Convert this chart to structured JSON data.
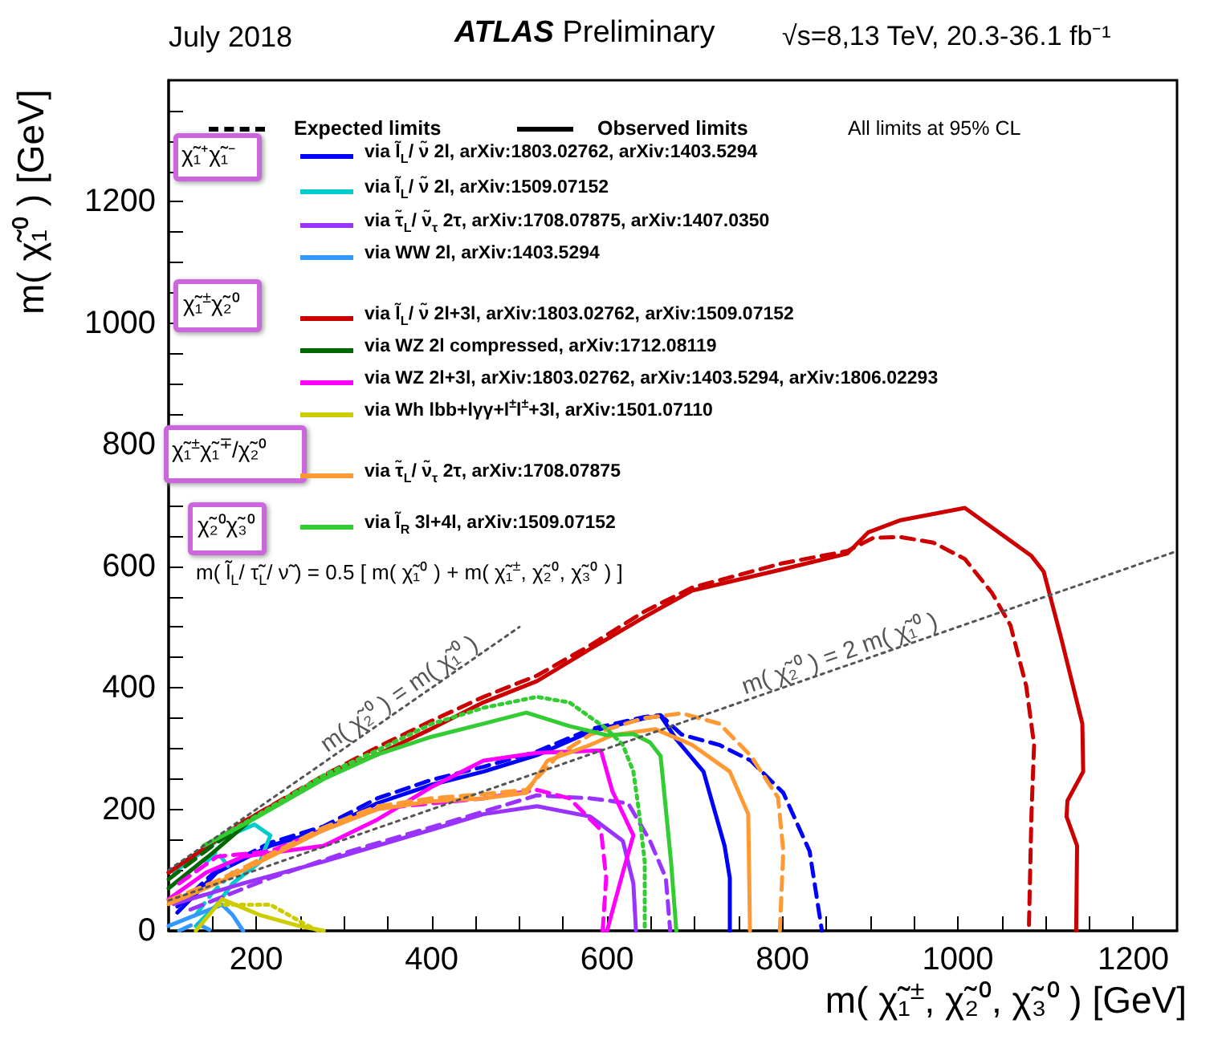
{
  "chart_data": {
    "type": "line",
    "title": "ATLAS Preliminary",
    "xlabel": "m( χ̃₁$^{±}$, χ̃₂⁰, χ̃₃⁰ ) [GeV]",
    "ylabel": "m( χ̃₁⁰ ) [GeV]",
    "annotations": [
      "July 2018",
      "√s=8,13 TeV, 20.3-36.1 fb⁻¹",
      "Expected limits",
      "Observed limits",
      "All limits at 95% CL",
      "χ̃₁⁺χ̃₁⁻",
      "χ̃₁$^{±}$χ̃₂⁰",
      "χ̃₁$^{±}$χ̃₁$^{∓}$/χ̃₂⁰",
      "χ̃₂⁰χ̃₃⁰",
      "m( l̃$_{L}$/ τ̃$_{L}$/ ν̃ ) = 0.5 [ m( χ̃₁⁰ ) + m( χ̃₁$^{±}$, χ̃₂⁰, χ̃₃⁰ ) ]"
    ],
    "xlim": [
      100,
      1250
    ],
    "ylim": [
      0,
      1400
    ],
    "xticks": [
      {
        "value": 150,
        "label": null
      },
      200,
      {
        "value": 250,
        "label": null
      },
      {
        "value": 300,
        "label": null
      },
      {
        "value": 350,
        "label": null
      },
      400,
      {
        "value": 450,
        "label": null
      },
      {
        "value": 500,
        "label": null
      },
      {
        "value": 550,
        "label": null
      },
      600,
      {
        "value": 650,
        "label": null
      },
      {
        "value": 700,
        "label": null
      },
      {
        "value": 750,
        "label": null
      },
      800,
      {
        "value": 850,
        "label": null
      },
      {
        "value": 900,
        "label": null
      },
      {
        "value": 950,
        "label": null
      },
      1000,
      {
        "value": 1050,
        "label": null
      },
      {
        "value": 1100,
        "label": null
      },
      {
        "value": 1150,
        "label": null
      },
      1200
    ],
    "yticks": [
      0,
      {
        "value": 50,
        "label": null
      },
      {
        "value": 100,
        "label": null
      },
      {
        "value": 150,
        "label": null
      },
      200,
      {
        "value": 250,
        "label": null
      },
      {
        "value": 300,
        "label": null
      },
      {
        "value": 350,
        "label": null
      },
      400,
      {
        "value": 450,
        "label": null
      },
      {
        "value": 500,
        "label": null
      },
      {
        "value": 550,
        "label": null
      },
      600,
      {
        "value": 650,
        "label": null
      },
      {
        "value": 700,
        "label": null
      },
      {
        "value": 750,
        "label": null
      },
      800,
      {
        "value": 850,
        "label": null
      },
      {
        "value": 900,
        "label": null
      },
      {
        "value": 950,
        "label": null
      },
      1000,
      {
        "value": 1050,
        "label": null
      },
      {
        "value": 1100,
        "label": null
      },
      {
        "value": 1150,
        "label": null
      },
      1200,
      {
        "value": 1250,
        "label": null
      },
      {
        "value": 1300,
        "label": null
      },
      {
        "value": 1350,
        "label": null
      }
    ],
    "legend": "top left",
    "marker": "none",
    "series": [
      {
        "name": "via l̃$_{L}$/ ν̃ 2l, arXiv:1803.02762, arXiv:1403.5294",
        "color": "#0000ff",
        "line_style": "solid",
        "x": [
          110,
          155,
          216,
          277,
          338,
          399,
          459,
          520,
          581,
          643,
          661,
          679,
          710,
          722,
          734,
          740,
          740
        ],
        "values": [
          30,
          96,
          140,
          166,
          210,
          240,
          262,
          289,
          328,
          350,
          354,
          315,
          262,
          201,
          140,
          87,
          0
        ]
      },
      {
        "color": "#0000ff",
        "line_style": "dashed",
        "x": [
          110,
          155,
          216,
          277,
          338,
          399,
          459,
          520,
          581,
          643,
          661,
          685,
          728,
          764,
          801,
          831,
          845
        ],
        "values": [
          40,
          100,
          145,
          172,
          218,
          248,
          270,
          295,
          332,
          352,
          355,
          323,
          306,
          280,
          227,
          131,
          0
        ]
      },
      {
        "name": "via l̃$_{L}$/ ν̃ 2l, arXiv:1509.07152",
        "color": "#00cccc",
        "line_style": "solid",
        "x": [
          106,
          155,
          198,
          216,
          204,
          173,
          155,
          131
        ],
        "values": [
          96,
          148,
          175,
          157,
          113,
          78,
          43,
          8
        ]
      },
      {
        "color": "#00cccc",
        "line_style": "dashed",
        "x": [
          143,
          155,
          173,
          149,
          131
        ],
        "values": [
          113,
          131,
          96,
          61,
          26
        ]
      },
      {
        "name": "via τ̃$_{L}$/ ν̃$_{τ}$ 2τ, arXiv:1708.07875, arXiv:1407.0350",
        "color": "#9933ff",
        "line_style": "solid",
        "x": [
          106,
          185,
          277,
          399,
          459,
          520,
          581,
          618,
          630,
          633
        ],
        "values": [
          44,
          78,
          114,
          166,
          192,
          205,
          188,
          148,
          78,
          0
        ]
      },
      {
        "color": "#9933ff",
        "line_style": "dashed",
        "x": [
          125,
          216,
          307,
          429,
          520,
          581,
          624,
          649,
          667,
          672
        ],
        "values": [
          35,
          87,
          131,
          183,
          223,
          218,
          210,
          148,
          87,
          0
        ]
      },
      {
        "name": "via WW 2l, arXiv:1403.5294",
        "color": "#3399ff",
        "line_style": "solid",
        "x": [
          100,
          131,
          161,
          173,
          185
        ],
        "values": [
          8,
          26,
          43,
          26,
          0
        ]
      },
      {
        "color": "#3399ff",
        "line_style": "dashed",
        "x": [
          112,
          131,
          149
        ],
        "values": [
          0,
          13,
          0
        ]
      },
      {
        "name": "via l̃$_{L}$/ ν̃ 2l+3l, arXiv:1803.02762, arXiv:1509.07152",
        "color": "#cc0000",
        "line_style": "solid",
        "x": [
          100,
          185,
          277,
          338,
          399,
          459,
          520,
          581,
          642,
          697,
          800,
          874,
          898,
          935,
          1008,
          1084,
          1098,
          1118,
          1142,
          1143,
          1125,
          1124,
          1136,
          1135
        ],
        "values": [
          96,
          179,
          254,
          290,
          332,
          376,
          411,
          464,
          516,
          560,
          595,
          621,
          656,
          676,
          696,
          617,
          591,
          481,
          341,
          262,
          214,
          188,
          140,
          0
        ]
      },
      {
        "color": "#cc0000",
        "line_style": "dashed",
        "x": [
          100,
          185,
          277,
          338,
          399,
          459,
          520,
          581,
          642,
          697,
          800,
          874,
          904,
          935,
          972,
          1008,
          1039,
          1060,
          1078,
          1087,
          1084,
          1081
        ],
        "values": [
          96,
          179,
          256,
          302,
          345,
          385,
          420,
          470,
          525,
          565,
          605,
          625,
          647,
          648,
          639,
          612,
          556,
          503,
          403,
          306,
          193,
          0
        ]
      },
      {
        "name": "via WZ 2l compressed, arXiv:1712.08119",
        "color": "#006600",
        "line_style": "solid",
        "x": [
          100,
          150,
          200
        ],
        "values": [
          70,
          128,
          190
        ]
      },
      {
        "color": "#006600",
        "line_style": "dashed",
        "x": [
          100,
          150,
          195
        ],
        "values": [
          85,
          140,
          185
        ]
      },
      {
        "name": "via WZ 2l+3l, arXiv:1803.02762, arXiv:1403.5294, arXiv:1806.02293",
        "color": "#ff00ff",
        "line_style": "solid",
        "x": [
          100,
          143,
          185,
          277,
          338,
          399,
          459,
          520,
          593,
          606,
          630,
          618,
          600
        ],
        "values": [
          52,
          96,
          122,
          140,
          183,
          236,
          280,
          293,
          297,
          230,
          157,
          96,
          0
        ]
      },
      {
        "color": "#ff00ff",
        "line_style": "dashed",
        "x": [
          112,
          155,
          216,
          338,
          459,
          520,
          557,
          593,
          599,
          595
        ],
        "values": [
          78,
          122,
          131,
          201,
          218,
          232,
          218,
          166,
          87,
          0
        ]
      },
      {
        "name": "via Wh lbb+lγγ+l$^{±}$l$^{±}$+3l, arXiv:1501.07110",
        "color": "#cccc00",
        "line_style": "solid",
        "x": [
          131,
          161,
          204,
          246,
          277
        ],
        "values": [
          0,
          52,
          26,
          9,
          0
        ]
      },
      {
        "color": "#cccc00",
        "line_style": "dotted",
        "x": [
          155,
          216,
          258,
          271
        ],
        "values": [
          43,
          43,
          9,
          0
        ]
      },
      {
        "name": "via τ̃$_{L}$/ ν̃$_{τ}$ 2τ, arXiv:1708.07875",
        "color": "#ff9933",
        "line_style": "solid",
        "x": [
          100,
          155,
          216,
          277,
          338,
          399,
          459,
          508,
          532,
          581,
          606,
          655,
          697,
          740,
          761,
          763
        ],
        "values": [
          44,
          78,
          122,
          166,
          200,
          213,
          218,
          227,
          280,
          306,
          322,
          332,
          306,
          262,
          192,
          0
        ]
      },
      {
        "color": "#ff9933",
        "line_style": "dashed",
        "x": [
          100,
          155,
          216,
          277,
          338,
          399,
          459,
          508,
          545,
          581,
          642,
          685,
          728,
          764,
          795,
          801,
          797
        ],
        "values": [
          50,
          82,
          126,
          170,
          205,
          218,
          225,
          232,
          290,
          323,
          350,
          358,
          341,
          288,
          219,
          131,
          0
        ]
      },
      {
        "name": "via l̃$_{R}$ 3l+4l, arXiv:1509.07152",
        "color": "#33cc33",
        "line_style": "solid",
        "x": [
          140,
          191,
          277,
          338,
          399,
          459,
          508,
          557,
          600,
          630,
          649,
          661,
          667,
          673,
          679
        ],
        "values": [
          140,
          179,
          250,
          290,
          319,
          341,
          359,
          337,
          322,
          324,
          310,
          288,
          201,
          113,
          0
        ]
      },
      {
        "color": "#33cc33",
        "line_style": "dotted",
        "x": [
          140,
          191,
          277,
          338,
          399,
          459,
          520,
          557,
          600,
          618,
          630,
          636,
          643,
          643
        ],
        "values": [
          140,
          181,
          256,
          297,
          340,
          367,
          385,
          376,
          332,
          306,
          262,
          201,
          113,
          0
        ]
      },
      {
        "name": "m( χ̃₂⁰ ) = m( χ̃₁⁰ )",
        "color": "#555555",
        "line_style": "dotted",
        "x": [
          100,
          500
        ],
        "values": [
          100,
          500
        ]
      },
      {
        "name": "m( χ̃₂⁰ ) = 2 m( χ̃₁⁰ )",
        "color": "#555555",
        "line_style": "dotted",
        "x": [
          100,
          1250
        ],
        "values": [
          50,
          625
        ]
      }
    ]
  }
}
